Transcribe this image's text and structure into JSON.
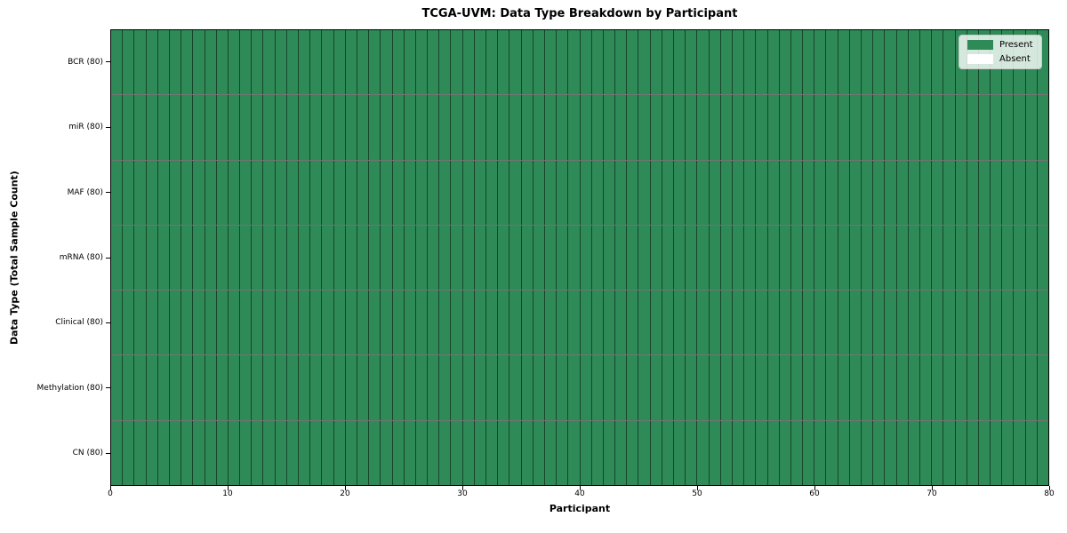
{
  "chart_data": {
    "type": "heatmap",
    "title": "TCGA-UVM: Data Type Breakdown by Participant",
    "xlabel": "Participant",
    "ylabel": "Data Type (Total Sample Count)",
    "x_range": [
      0,
      80
    ],
    "x_ticks": [
      0,
      10,
      20,
      30,
      40,
      50,
      60,
      70,
      80
    ],
    "n_participants": 80,
    "grid": false,
    "rows": [
      {
        "label": "BCR (80)",
        "total_samples": 80,
        "present_count": 80,
        "absent_count": 0
      },
      {
        "label": "miR (80)",
        "total_samples": 80,
        "present_count": 80,
        "absent_count": 0
      },
      {
        "label": "MAF (80)",
        "total_samples": 80,
        "present_count": 80,
        "absent_count": 0
      },
      {
        "label": "mRNA (80)",
        "total_samples": 80,
        "present_count": 80,
        "absent_count": 0
      },
      {
        "label": "Clinical (80)",
        "total_samples": 80,
        "present_count": 80,
        "absent_count": 0
      },
      {
        "label": "Methylation (80)",
        "total_samples": 80,
        "present_count": 80,
        "absent_count": 0
      },
      {
        "label": "CN (80)",
        "total_samples": 80,
        "present_count": 80,
        "absent_count": 0
      }
    ],
    "legend": {
      "position": "upper-right",
      "entries": [
        {
          "label": "Present",
          "color": "#2e8b57"
        },
        {
          "label": "Absent",
          "color": "#ffffff"
        }
      ]
    },
    "colors": {
      "present": "#2e8b57",
      "absent": "#ffffff",
      "cell_edge": "rgba(0,0,0,0.55)",
      "spine": "#000000",
      "legend_background": "rgba(255,255,255,0.8)"
    }
  }
}
